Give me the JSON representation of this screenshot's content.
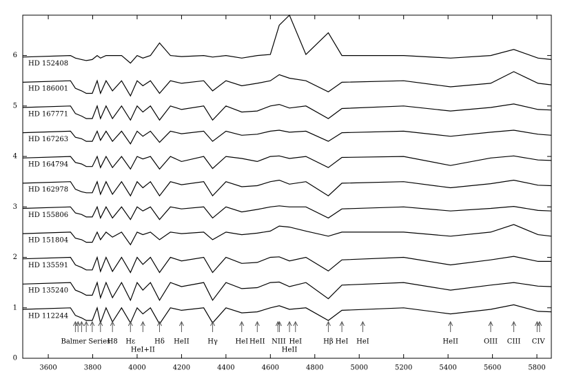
{
  "chart_data": {
    "type": "line",
    "xlim": [
      3485,
      5865
    ],
    "ylim": [
      0,
      6.8
    ],
    "xticks": [
      3600,
      3800,
      4000,
      4200,
      4400,
      4600,
      4800,
      5000,
      5200,
      5400,
      5600,
      5800
    ],
    "yticks": [
      0,
      1,
      2,
      3,
      4,
      5,
      6
    ],
    "color": "#000000",
    "x": [
      3485,
      3700,
      3722,
      3750,
      3771,
      3798,
      3820,
      3835,
      3860,
      3889,
      3930,
      3970,
      4000,
      4026,
      4060,
      4101,
      4150,
      4200,
      4300,
      4340,
      4400,
      4471,
      4541,
      4600,
      4640,
      4686,
      4760,
      4861,
      4922,
      5200,
      5411,
      5592,
      5696,
      5805,
      5865
    ],
    "series": [
      {
        "name": "HD 152408",
        "values": [
          5.97,
          6.0,
          5.95,
          5.92,
          5.9,
          5.92,
          6.0,
          5.95,
          6.0,
          6.0,
          6.0,
          5.85,
          6.0,
          5.95,
          6.0,
          6.25,
          6.0,
          5.98,
          6.0,
          5.97,
          6.0,
          5.95,
          6.0,
          6.02,
          6.6,
          6.8,
          6.02,
          6.45,
          6.0,
          6.0,
          5.95,
          6.0,
          6.12,
          5.95,
          5.92
        ]
      },
      {
        "name": "HD 186001",
        "values": [
          5.47,
          5.5,
          5.35,
          5.3,
          5.25,
          5.25,
          5.5,
          5.25,
          5.5,
          5.3,
          5.5,
          5.2,
          5.5,
          5.4,
          5.5,
          5.25,
          5.5,
          5.45,
          5.5,
          5.3,
          5.5,
          5.4,
          5.45,
          5.5,
          5.62,
          5.55,
          5.5,
          5.28,
          5.47,
          5.5,
          5.38,
          5.45,
          5.68,
          5.45,
          5.42
        ]
      },
      {
        "name": "HD 167771",
        "values": [
          4.97,
          5.0,
          4.85,
          4.8,
          4.75,
          4.75,
          5.0,
          4.75,
          5.0,
          4.75,
          5.0,
          4.72,
          5.0,
          4.88,
          5.0,
          4.72,
          5.0,
          4.93,
          5.0,
          4.72,
          5.0,
          4.88,
          4.9,
          5.0,
          5.03,
          4.96,
          5.0,
          4.75,
          4.95,
          5.0,
          4.9,
          4.97,
          5.04,
          4.93,
          4.92
        ]
      },
      {
        "name": "HD 167263",
        "values": [
          4.47,
          4.5,
          4.38,
          4.35,
          4.3,
          4.3,
          4.5,
          4.32,
          4.5,
          4.3,
          4.5,
          4.25,
          4.5,
          4.4,
          4.5,
          4.28,
          4.5,
          4.45,
          4.5,
          4.3,
          4.5,
          4.42,
          4.44,
          4.5,
          4.52,
          4.48,
          4.5,
          4.3,
          4.47,
          4.5,
          4.4,
          4.48,
          4.52,
          4.44,
          4.42
        ]
      },
      {
        "name": "HD 164794",
        "values": [
          3.97,
          4.0,
          3.88,
          3.85,
          3.8,
          3.8,
          4.0,
          3.78,
          4.0,
          3.78,
          4.0,
          3.75,
          4.0,
          3.95,
          4.0,
          3.75,
          4.0,
          3.9,
          4.0,
          3.76,
          4.0,
          3.96,
          3.9,
          4.0,
          4.01,
          3.96,
          4.0,
          3.78,
          3.98,
          4.0,
          3.82,
          3.97,
          4.01,
          3.93,
          3.92
        ]
      },
      {
        "name": "HD 162978",
        "values": [
          3.47,
          3.5,
          3.35,
          3.3,
          3.28,
          3.28,
          3.5,
          3.25,
          3.5,
          3.25,
          3.5,
          3.22,
          3.5,
          3.38,
          3.5,
          3.22,
          3.5,
          3.44,
          3.5,
          3.22,
          3.5,
          3.4,
          3.42,
          3.5,
          3.53,
          3.45,
          3.5,
          3.22,
          3.47,
          3.5,
          3.38,
          3.46,
          3.53,
          3.43,
          3.42
        ]
      },
      {
        "name": "HD 155806",
        "values": [
          2.97,
          3.0,
          2.88,
          2.85,
          2.8,
          2.8,
          3.0,
          2.78,
          3.0,
          2.78,
          3.0,
          2.75,
          3.0,
          2.92,
          3.0,
          2.75,
          3.0,
          2.96,
          3.0,
          2.78,
          3.0,
          2.9,
          2.95,
          3.0,
          3.02,
          3.0,
          3.0,
          2.78,
          2.96,
          3.0,
          2.92,
          2.97,
          3.01,
          2.93,
          2.92
        ]
      },
      {
        "name": "HD 151804",
        "values": [
          2.47,
          2.5,
          2.38,
          2.35,
          2.3,
          2.3,
          2.5,
          2.35,
          2.5,
          2.4,
          2.5,
          2.25,
          2.5,
          2.45,
          2.5,
          2.35,
          2.5,
          2.47,
          2.5,
          2.35,
          2.5,
          2.45,
          2.48,
          2.52,
          2.62,
          2.6,
          2.52,
          2.42,
          2.5,
          2.5,
          2.42,
          2.5,
          2.65,
          2.45,
          2.42
        ]
      },
      {
        "name": "HD 135591",
        "values": [
          1.97,
          2.0,
          1.85,
          1.8,
          1.75,
          1.75,
          2.0,
          1.72,
          2.0,
          1.72,
          2.0,
          1.7,
          2.0,
          1.86,
          2.0,
          1.7,
          2.0,
          1.93,
          2.0,
          1.7,
          2.0,
          1.88,
          1.9,
          2.0,
          2.01,
          1.93,
          2.0,
          1.73,
          1.95,
          2.0,
          1.85,
          1.95,
          2.02,
          1.92,
          1.92
        ]
      },
      {
        "name": "HD 135240",
        "values": [
          1.47,
          1.5,
          1.35,
          1.3,
          1.25,
          1.25,
          1.5,
          1.2,
          1.5,
          1.2,
          1.5,
          1.15,
          1.5,
          1.35,
          1.5,
          1.15,
          1.5,
          1.42,
          1.5,
          1.15,
          1.5,
          1.38,
          1.4,
          1.5,
          1.51,
          1.42,
          1.5,
          1.18,
          1.45,
          1.5,
          1.35,
          1.45,
          1.5,
          1.43,
          1.42
        ]
      },
      {
        "name": "HD 112244",
        "values": [
          0.97,
          1.0,
          0.85,
          0.8,
          0.75,
          0.75,
          1.0,
          0.7,
          1.0,
          0.72,
          1.0,
          0.7,
          1.0,
          0.88,
          1.0,
          0.68,
          1.0,
          0.95,
          1.0,
          0.7,
          1.0,
          0.9,
          0.92,
          1.0,
          1.04,
          0.97,
          1.0,
          0.75,
          0.95,
          1.0,
          0.88,
          0.97,
          1.06,
          0.93,
          0.92
        ]
      }
    ],
    "annotations": [
      {
        "text": "Balmer Series",
        "x": [
          3722,
          3734,
          3750,
          3771,
          3798,
          3835
        ]
      },
      {
        "text": "H8",
        "x": [
          3889
        ]
      },
      {
        "text": "Hε",
        "x": [
          3970
        ]
      },
      {
        "text": "HeI+II",
        "x": [
          4026
        ]
      },
      {
        "text": "Hδ",
        "x": [
          4101
        ]
      },
      {
        "text": "HeII",
        "x": [
          4200
        ]
      },
      {
        "text": "Hγ",
        "x": [
          4340
        ]
      },
      {
        "text": "HeI",
        "x": [
          4471
        ]
      },
      {
        "text": "HeII",
        "x": [
          4541
        ]
      },
      {
        "text": "NIII",
        "x": [
          4634,
          4641
        ]
      },
      {
        "text": "HeII",
        "x": [
          4686
        ]
      },
      {
        "text": "HeI",
        "x": [
          4713
        ]
      },
      {
        "text": "Hβ",
        "x": [
          4861
        ]
      },
      {
        "text": "HeI",
        "x": [
          4922
        ]
      },
      {
        "text": "HeI",
        "x": [
          5016
        ]
      },
      {
        "text": "HeII",
        "x": [
          5411
        ]
      },
      {
        "text": "OIII",
        "x": [
          5592
        ]
      },
      {
        "text": "CIII",
        "x": [
          5696
        ]
      },
      {
        "text": "CIV",
        "x": [
          5801,
          5812
        ]
      }
    ]
  }
}
